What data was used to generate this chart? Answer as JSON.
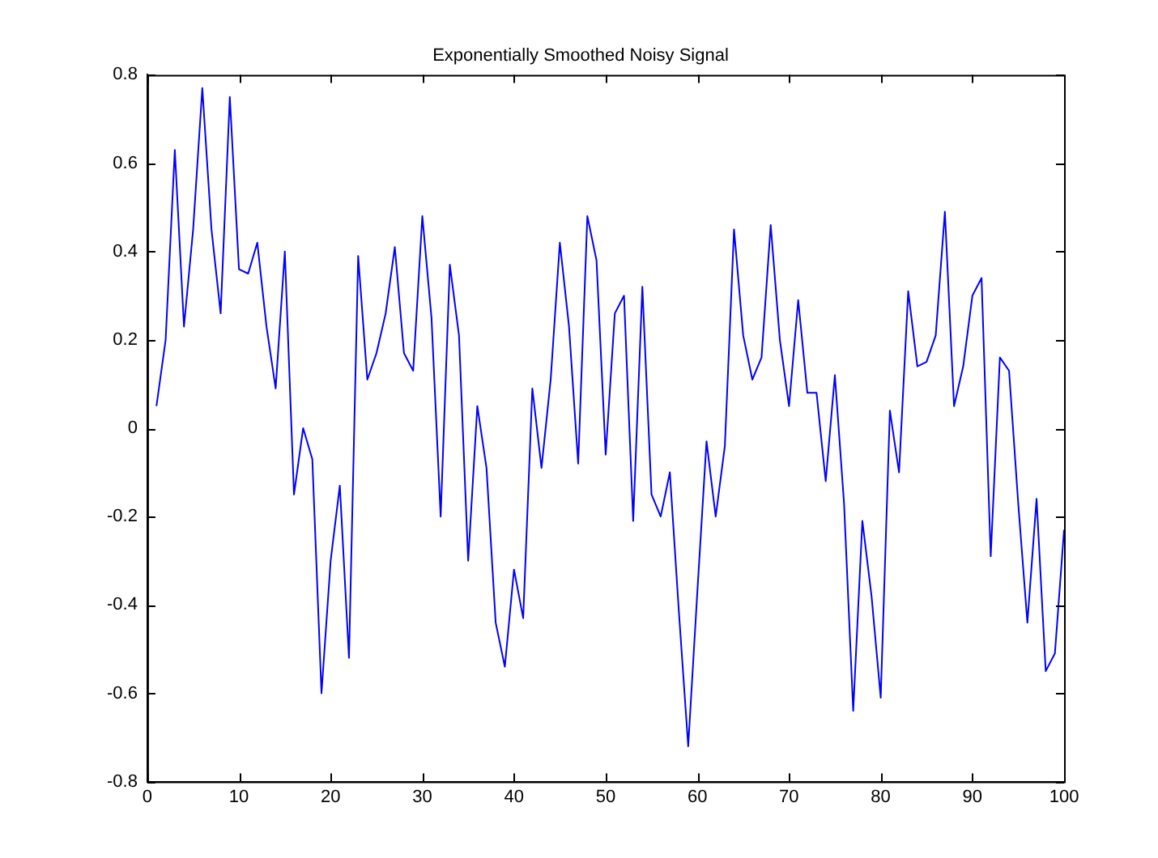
{
  "chart_data": {
    "type": "line",
    "title": "Exponentially Smoothed Noisy Signal",
    "x": [
      1,
      2,
      3,
      4,
      5,
      6,
      7,
      8,
      9,
      10,
      11,
      12,
      13,
      14,
      15,
      16,
      17,
      18,
      19,
      20,
      21,
      22,
      23,
      24,
      25,
      26,
      27,
      28,
      29,
      30,
      31,
      32,
      33,
      34,
      35,
      36,
      37,
      38,
      39,
      40,
      41,
      42,
      43,
      44,
      45,
      46,
      47,
      48,
      49,
      50,
      51,
      52,
      53,
      54,
      55,
      56,
      57,
      58,
      59,
      60,
      61,
      62,
      63,
      64,
      65,
      66,
      67,
      68,
      69,
      70,
      71,
      72,
      73,
      74,
      75,
      76,
      77,
      78,
      79,
      80,
      81,
      82,
      83,
      84,
      85,
      86,
      87,
      88,
      89,
      90,
      91,
      92,
      93,
      94,
      95,
      96,
      97,
      98,
      99,
      100
    ],
    "series": [
      {
        "color": "#0000ff",
        "values": [
          0.05,
          0.2,
          0.63,
          0.23,
          0.45,
          0.77,
          0.45,
          0.26,
          0.75,
          0.36,
          0.35,
          0.42,
          0.23,
          0.09,
          0.4,
          -0.15,
          0.0,
          -0.07,
          -0.6,
          -0.3,
          -0.13,
          -0.52,
          0.39,
          0.11,
          0.17,
          0.26,
          0.41,
          0.17,
          0.13,
          0.48,
          0.25,
          -0.2,
          0.37,
          0.21,
          -0.3,
          0.05,
          -0.09,
          -0.44,
          -0.54,
          -0.32,
          -0.43,
          0.09,
          -0.09,
          0.11,
          0.42,
          0.23,
          -0.08,
          0.48,
          0.38,
          -0.06,
          0.26,
          0.3,
          -0.21,
          0.32,
          -0.15,
          -0.2,
          -0.1,
          -0.42,
          -0.72,
          -0.37,
          -0.03,
          -0.2,
          -0.04,
          0.45,
          0.21,
          0.11,
          0.16,
          0.46,
          0.2,
          0.05,
          0.29,
          0.08,
          0.08,
          -0.12,
          0.12,
          -0.17,
          -0.64,
          -0.21,
          -0.38,
          -0.61,
          0.04,
          -0.1,
          0.31,
          0.14,
          0.15,
          0.21,
          0.49,
          0.05,
          0.14,
          0.3,
          0.34,
          -0.29,
          0.16,
          0.13,
          -0.17,
          -0.44,
          -0.16,
          -0.55,
          -0.51,
          -0.23
        ]
      }
    ],
    "xlim": [
      0,
      100
    ],
    "xticks": [
      0,
      10,
      20,
      30,
      40,
      50,
      60,
      70,
      80,
      90,
      100
    ],
    "ylim": [
      -0.8,
      0.8
    ],
    "yticks": [
      -0.8,
      -0.6,
      -0.4,
      -0.2,
      0,
      0.2,
      0.4,
      0.6,
      0.8
    ],
    "legend": false,
    "marker": "none",
    "line_style": "solid"
  }
}
